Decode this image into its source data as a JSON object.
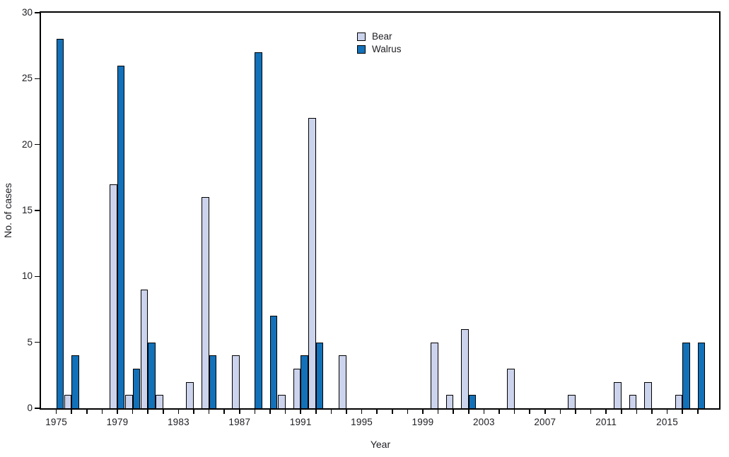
{
  "figure": {
    "background": "#ffffff",
    "text_color": "#1d1d23",
    "axis_color": "#000000"
  },
  "legend": {
    "items": [
      {
        "label": "Bear",
        "color": "#ccd3ec"
      },
      {
        "label": "Walrus",
        "color": "#1271b9"
      }
    ]
  },
  "chart_data": {
    "type": "bar",
    "title": "",
    "xlabel": "Year",
    "ylabel": "No. of cases",
    "grid": false,
    "legend_position": "top-center-inside",
    "x_domain": [
      1974,
      2018.4
    ],
    "ylim": [
      0,
      30
    ],
    "y_ticks": [
      0,
      5,
      10,
      15,
      20,
      25,
      30
    ],
    "x_labeled_years": [
      1975,
      1979,
      1983,
      1987,
      1991,
      1995,
      1999,
      2003,
      2007,
      2011,
      2015
    ],
    "years": [
      1975,
      1976,
      1977,
      1978,
      1979,
      1980,
      1981,
      1982,
      1983,
      1984,
      1985,
      1986,
      1987,
      1988,
      1989,
      1990,
      1991,
      1992,
      1993,
      1994,
      1995,
      1996,
      1997,
      1998,
      1999,
      2000,
      2001,
      2002,
      2003,
      2004,
      2005,
      2006,
      2007,
      2008,
      2009,
      2010,
      2011,
      2012,
      2013,
      2014,
      2015,
      2016,
      2017
    ],
    "series": [
      {
        "name": "Bear",
        "values": [
          0,
          1,
          0,
          0,
          17,
          1,
          9,
          1,
          0,
          2,
          16,
          0,
          4,
          0,
          0,
          1,
          3,
          22,
          0,
          4,
          0,
          0,
          0,
          0,
          0,
          5,
          1,
          6,
          0,
          0,
          3,
          0,
          0,
          0,
          1,
          0,
          0,
          2,
          1,
          2,
          0,
          1,
          0
        ]
      },
      {
        "name": "Walrus",
        "values": [
          28,
          4,
          0,
          0,
          26,
          3,
          5,
          0,
          0,
          0,
          4,
          0,
          0,
          27,
          7,
          0,
          4,
          5,
          0,
          0,
          0,
          0,
          0,
          0,
          0,
          0,
          0,
          1,
          0,
          0,
          0,
          0,
          0,
          0,
          0,
          0,
          0,
          0,
          0,
          0,
          0,
          5,
          5
        ]
      }
    ]
  }
}
